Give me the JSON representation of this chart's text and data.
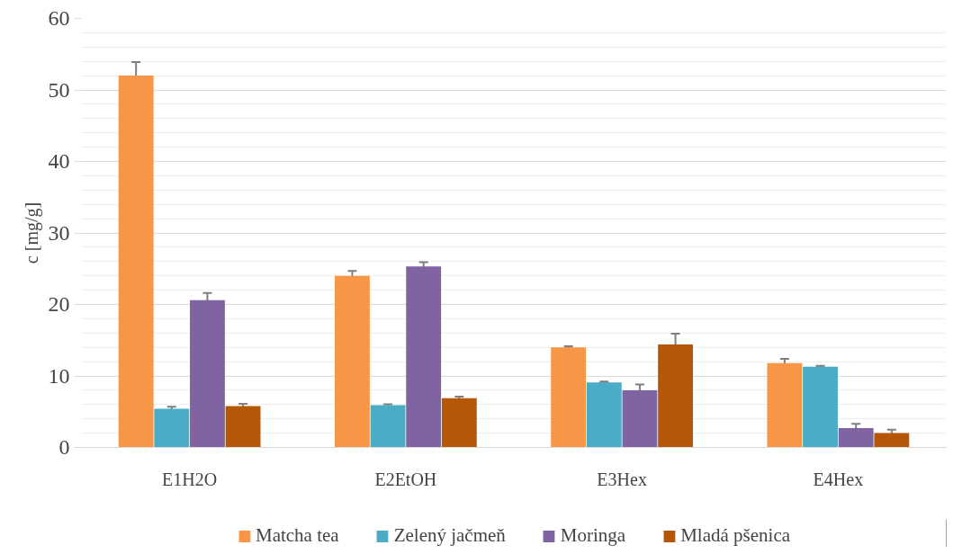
{
  "chart_data": {
    "type": "bar",
    "ylabel": "c [mg/g]",
    "categories": [
      "E1H2O",
      "E2EtOH",
      "E3Hex",
      "E4Hex"
    ],
    "series": [
      {
        "name": "Matcha tea",
        "color": "#f79646",
        "values": [
          52,
          24,
          14,
          11.8
        ],
        "errors": [
          1.9,
          0.7,
          0.15,
          0.6
        ]
      },
      {
        "name": "Zelený jačmeň",
        "color": "#4bacc6",
        "values": [
          5.4,
          5.9,
          9.1,
          11.3
        ],
        "errors": [
          0.3,
          0.15,
          0.1,
          0.1
        ]
      },
      {
        "name": "Moringa",
        "color": "#8064a2",
        "values": [
          20.6,
          25.3,
          8,
          2.7
        ],
        "errors": [
          1,
          0.6,
          0.8,
          0.6
        ]
      },
      {
        "name": "Mladá pšenica",
        "color": "#b65708",
        "values": [
          5.8,
          6.9,
          14.4,
          2
        ],
        "errors": [
          0.3,
          0.2,
          1.5,
          0.5
        ]
      }
    ],
    "ylim": [
      0,
      60
    ],
    "yticks": [
      0,
      {
        "value": 2,
        "label": null
      },
      {
        "value": 4,
        "label": null
      },
      {
        "value": 6,
        "label": null
      },
      {
        "value": 8,
        "label": null
      },
      10,
      {
        "value": 12,
        "label": null
      },
      {
        "value": 14,
        "label": null
      },
      {
        "value": 16,
        "label": null
      },
      {
        "value": 18,
        "label": null
      },
      20,
      {
        "value": 22,
        "label": null
      },
      {
        "value": 24,
        "label": null
      },
      {
        "value": 26,
        "label": null
      },
      {
        "value": 28,
        "label": null
      },
      30,
      {
        "value": 32,
        "label": null
      },
      {
        "value": 34,
        "label": null
      },
      {
        "value": 36,
        "label": null
      },
      {
        "value": 38,
        "label": null
      },
      40,
      {
        "value": 42,
        "label": null
      },
      {
        "value": 44,
        "label": null
      },
      {
        "value": 46,
        "label": null
      },
      {
        "value": 48,
        "label": null
      },
      50,
      {
        "value": 52,
        "label": null
      },
      {
        "value": 54,
        "label": null
      },
      {
        "value": 56,
        "label": null
      },
      {
        "value": 58,
        "label": null
      },
      60
    ],
    "grid": "y",
    "legend": "bottom"
  }
}
